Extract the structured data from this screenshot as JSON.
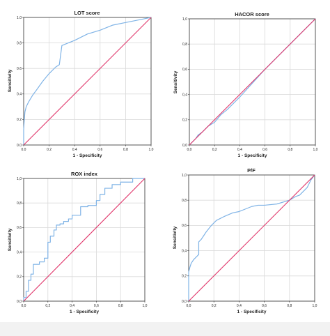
{
  "colors": {
    "roc_curve": "#7fb3e6",
    "reference_line": "#e0356a",
    "grid": "#d9d9d9",
    "axis": "#333333"
  },
  "chart_data": [
    {
      "type": "line",
      "title": "LOT score",
      "xlabel": "1 - Specificity",
      "ylabel": "Sensitivity",
      "xlim": [
        0,
        1
      ],
      "ylim": [
        0,
        1
      ],
      "xticks": [
        "0.0",
        "0.2",
        "0.4",
        "0.6",
        "0.8",
        "1.0"
      ],
      "yticks": [
        "0.0",
        "0.2",
        "0.4",
        "0.6",
        "0.8",
        "1.0"
      ],
      "grid": true,
      "series": [
        {
          "role": "roc",
          "x": [
            0,
            0,
            0.005,
            0.01,
            0.02,
            0.04,
            0.07,
            0.1,
            0.15,
            0.2,
            0.25,
            0.28,
            0.3,
            0.35,
            0.4,
            0.5,
            0.6,
            0.7,
            0.8,
            0.9,
            0.95,
            1.0
          ],
          "y": [
            0,
            0.12,
            0.2,
            0.26,
            0.3,
            0.34,
            0.39,
            0.43,
            0.5,
            0.56,
            0.61,
            0.63,
            0.78,
            0.8,
            0.82,
            0.87,
            0.9,
            0.94,
            0.96,
            0.98,
            0.99,
            1.0
          ]
        },
        {
          "role": "reference",
          "x": [
            0,
            1
          ],
          "y": [
            0,
            1
          ]
        }
      ]
    },
    {
      "type": "line",
      "title": "HACOR score",
      "xlabel": "1 - Specificity",
      "ylabel": "Sensitivity",
      "xlim": [
        0,
        1
      ],
      "ylim": [
        0,
        1
      ],
      "xticks": [
        "0,0",
        "0,2",
        "0,4",
        "0,6",
        "0,8",
        "1,0"
      ],
      "yticks": [
        "0,0",
        "0,2",
        "0,4",
        "0,6",
        "0,8",
        "1,0"
      ],
      "grid": true,
      "series": [
        {
          "role": "roc",
          "x": [
            0,
            0.02,
            0.05,
            0.07,
            0.1,
            0.15,
            0.2,
            0.25,
            0.3,
            0.4,
            0.5,
            0.6,
            0.7,
            0.8,
            0.9,
            0.97,
            1.0
          ],
          "y": [
            0,
            0.02,
            0.05,
            0.08,
            0.1,
            0.15,
            0.18,
            0.24,
            0.28,
            0.38,
            0.49,
            0.6,
            0.7,
            0.8,
            0.9,
            0.97,
            1.0
          ]
        },
        {
          "role": "reference",
          "x": [
            0,
            1
          ],
          "y": [
            0,
            1
          ]
        }
      ]
    },
    {
      "type": "line",
      "title": "ROX index",
      "xlabel": "1 - Specificity",
      "ylabel": "Sensitivity",
      "xlim": [
        0,
        1
      ],
      "ylim": [
        0,
        1
      ],
      "xticks": [
        "0,0",
        "0,2",
        "0,4",
        "0,6",
        "0,8",
        "1,0"
      ],
      "yticks": [
        "0,0",
        "0,2",
        "0,4",
        "0,6",
        "0,8",
        "1,0"
      ],
      "grid": true,
      "series": [
        {
          "role": "roc",
          "x": [
            0,
            0,
            0.02,
            0.02,
            0.04,
            0.04,
            0.06,
            0.06,
            0.08,
            0.08,
            0.13,
            0.13,
            0.17,
            0.17,
            0.2,
            0.2,
            0.22,
            0.22,
            0.25,
            0.25,
            0.27,
            0.27,
            0.3,
            0.3,
            0.33,
            0.33,
            0.37,
            0.37,
            0.4,
            0.4,
            0.47,
            0.47,
            0.53,
            0.53,
            0.6,
            0.6,
            0.63,
            0.63,
            0.67,
            0.67,
            0.73,
            0.73,
            0.8,
            0.8,
            0.9,
            0.9,
            1.0
          ],
          "y": [
            0,
            0.03,
            0.03,
            0.08,
            0.08,
            0.17,
            0.17,
            0.22,
            0.22,
            0.3,
            0.3,
            0.32,
            0.32,
            0.35,
            0.35,
            0.48,
            0.48,
            0.53,
            0.53,
            0.58,
            0.58,
            0.62,
            0.62,
            0.63,
            0.63,
            0.65,
            0.65,
            0.67,
            0.67,
            0.7,
            0.7,
            0.77,
            0.77,
            0.78,
            0.78,
            0.82,
            0.82,
            0.87,
            0.87,
            0.92,
            0.92,
            0.95,
            0.95,
            0.97,
            0.97,
            1.0,
            1.0
          ]
        },
        {
          "role": "reference",
          "x": [
            0,
            1
          ],
          "y": [
            0,
            1
          ]
        }
      ]
    },
    {
      "type": "line",
      "title": "P/F",
      "xlabel": "1 - Specificity",
      "ylabel": "Sensitivity",
      "xlim": [
        0,
        1
      ],
      "ylim": [
        0,
        1
      ],
      "xticks": [
        "0,0",
        "0,2",
        "0,4",
        "0,6",
        "0,8",
        "1,0"
      ],
      "yticks": [
        "0,0",
        "0,2",
        "0,4",
        "0,6",
        "0,8",
        "1,0"
      ],
      "grid": true,
      "series": [
        {
          "role": "roc",
          "x": [
            0,
            0,
            0.01,
            0.02,
            0.04,
            0.06,
            0.08,
            0.08,
            0.1,
            0.12,
            0.14,
            0.18,
            0.22,
            0.28,
            0.35,
            0.4,
            0.45,
            0.5,
            0.55,
            0.6,
            0.7,
            0.8,
            0.85,
            0.88,
            0.9,
            0.94,
            0.97,
            1.0
          ],
          "y": [
            0,
            0.23,
            0.27,
            0.3,
            0.33,
            0.35,
            0.37,
            0.47,
            0.49,
            0.52,
            0.55,
            0.6,
            0.64,
            0.67,
            0.7,
            0.71,
            0.73,
            0.75,
            0.76,
            0.76,
            0.77,
            0.8,
            0.83,
            0.84,
            0.86,
            0.9,
            0.96,
            1.0
          ]
        },
        {
          "role": "reference",
          "x": [
            0,
            1
          ],
          "y": [
            0,
            1
          ]
        }
      ]
    }
  ]
}
